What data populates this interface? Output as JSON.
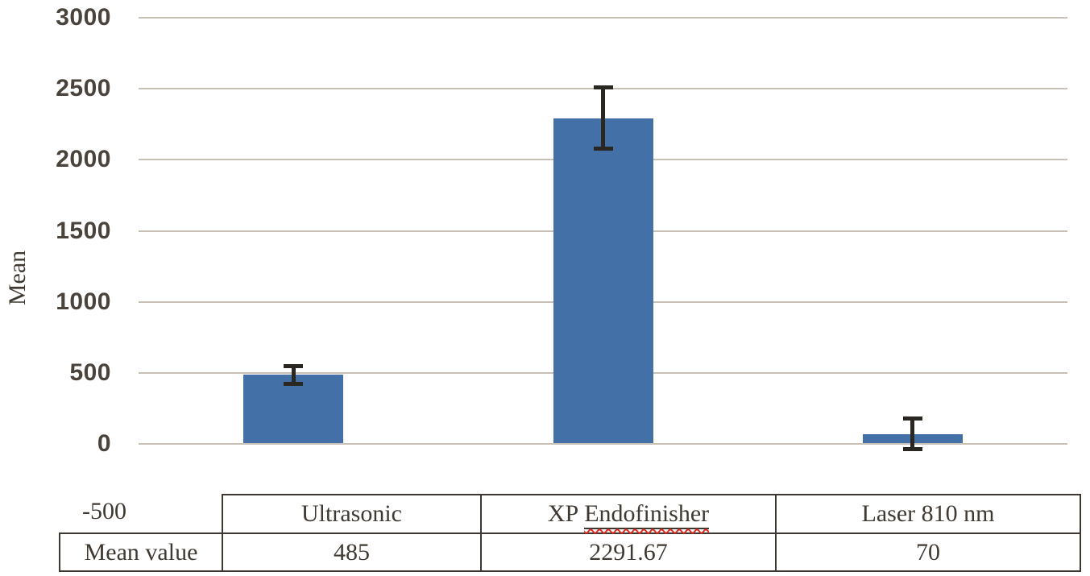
{
  "chart_data": {
    "type": "bar",
    "title": "",
    "xlabel": "",
    "ylabel": "Mean",
    "categories": [
      "Ultrasonic",
      "XP Endofinisher",
      "Laser 810 nm"
    ],
    "values": [
      485,
      2291.67,
      70
    ],
    "error_bars_plus_minus": [
      62,
      215,
      107
    ],
    "ylim": [
      -500,
      3000
    ],
    "grid": true,
    "legend": null,
    "yticks": [
      {
        "label": "3000",
        "value": 3000,
        "gridline": true
      },
      {
        "label": "2500",
        "value": 2500,
        "gridline": true
      },
      {
        "label": "2000",
        "value": 2000,
        "gridline": true
      },
      {
        "label": "1500",
        "value": 1500,
        "gridline": true
      },
      {
        "label": "1000",
        "value": 1000,
        "gridline": true
      },
      {
        "label": "500",
        "value": 500,
        "gridline": true
      },
      {
        "label": "0",
        "value": 0,
        "gridline": true
      }
    ],
    "ytick_below_axis": "-500",
    "colors": {
      "bar": "#4470a8",
      "gridline": "#c9c0b5",
      "tick_text": "#4a433c",
      "error_bar": "#2a2622",
      "table_text": "#3f3932",
      "spellcheck_squiggle": "#da2c20"
    }
  },
  "axis": {
    "y_title": "Mean",
    "below_axis_tick": "-500"
  },
  "table": {
    "row_label": "Mean value",
    "col1_header": "Ultrasonic",
    "col2_header_prefix": "XP",
    "col2_header_underlined": "Endofinisher",
    "col3_header": "Laser 810 nm",
    "col1_value": "485",
    "col2_value": "2291.67",
    "col3_value": "70"
  }
}
